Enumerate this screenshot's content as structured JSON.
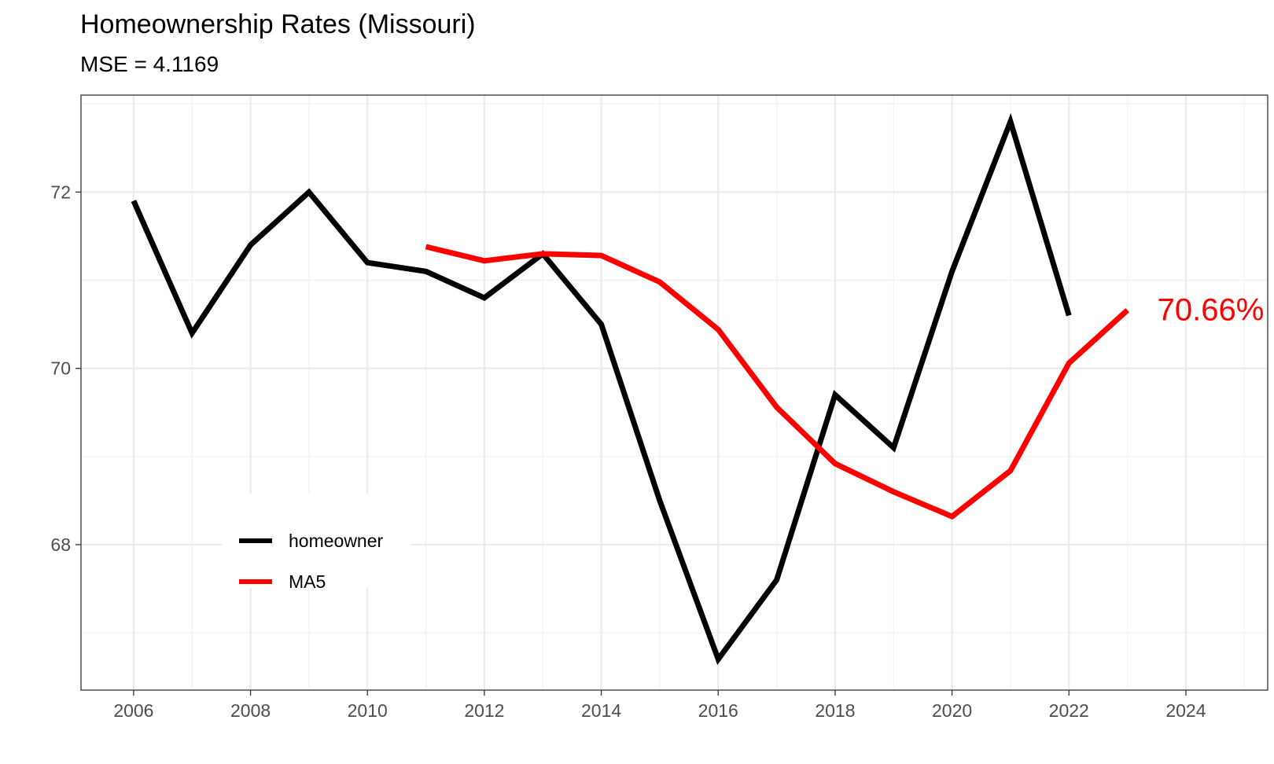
{
  "chart_data": {
    "type": "line",
    "title": "Homeownership Rates (Missouri)",
    "subtitle": "MSE =  4.1169",
    "xlabel": "",
    "ylabel": "",
    "xlim": [
      2005.1,
      2025.4
    ],
    "ylim": [
      66.35,
      73.1
    ],
    "x_ticks": [
      2006,
      2008,
      2010,
      2012,
      2014,
      2016,
      2018,
      2020,
      2022,
      2024
    ],
    "y_ticks": [
      68,
      70,
      72
    ],
    "grid": true,
    "legend_position": "bottom-left",
    "series": [
      {
        "name": "homeowner",
        "color": "#000000",
        "x": [
          2006,
          2007,
          2008,
          2009,
          2010,
          2011,
          2012,
          2013,
          2014,
          2015,
          2016,
          2017,
          2018,
          2019,
          2020,
          2021,
          2022
        ],
        "values": [
          71.9,
          70.4,
          71.4,
          72.0,
          71.2,
          71.1,
          70.8,
          71.3,
          70.5,
          68.5,
          66.7,
          67.6,
          69.7,
          69.1,
          71.1,
          72.8,
          70.6
        ]
      },
      {
        "name": "MA5",
        "color": "#ff0000",
        "x": [
          2011,
          2012,
          2013,
          2014,
          2015,
          2016,
          2017,
          2018,
          2019,
          2020,
          2021,
          2022,
          2023
        ],
        "values": [
          71.38,
          71.22,
          71.3,
          71.28,
          70.98,
          70.44,
          69.56,
          68.92,
          68.6,
          68.32,
          68.84,
          70.06,
          70.66
        ]
      }
    ],
    "annotations": [
      {
        "text": "70.66%",
        "x": 2023,
        "y": 70.66,
        "color": "#ff0000"
      }
    ]
  }
}
